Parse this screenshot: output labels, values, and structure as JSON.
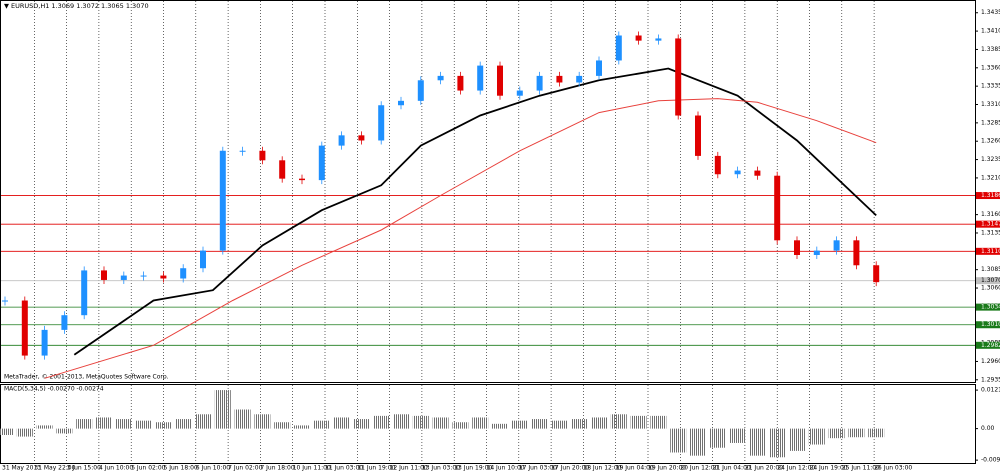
{
  "chart_data": [
    {
      "type": "candlestick",
      "title": "EURUSD,H1 1.3069 1.3072 1.3065 1.3070",
      "annotation": "MetaTrader, © 2001-2013, MetaQuotes Software Corp.",
      "up_color": "#1e90ff",
      "down_color": "#e00000",
      "values": [
        1.3043,
        1.2968,
        1.3003,
        1.3023,
        1.3084,
        1.3071,
        1.3077,
        1.3077,
        1.3073,
        1.3087,
        1.3111,
        1.3247,
        1.3247,
        1.3234,
        1.3209,
        1.3207,
        1.3254,
        1.3268,
        1.3261,
        1.3309,
        1.3315,
        1.3343,
        1.3349,
        1.3329,
        1.3363,
        1.3322,
        1.3329,
        1.3349,
        1.334,
        1.3349,
        1.337,
        1.3404,
        1.3397,
        1.34,
        1.3295,
        1.324,
        1.3215,
        1.322,
        1.3213,
        1.3125,
        1.3105,
        1.3111,
        1.3125,
        1.3091,
        1.3068
      ],
      "ma": [
        {
          "color": "#000000",
          "x": [
            3.5,
            7.5,
            10.5,
            13,
            16,
            19,
            21,
            24,
            27,
            30,
            33.5,
            37,
            40,
            44
          ],
          "values": [
            1.2969,
            1.3043,
            1.3057,
            1.3118,
            1.3166,
            1.32,
            1.3254,
            1.3295,
            1.3322,
            1.3343,
            1.3359,
            1.3322,
            1.3261,
            1.3159
          ]
        },
        {
          "color": "#e8413c",
          "x": [
            2,
            7.5,
            11.5,
            15,
            19,
            22,
            26,
            30,
            33,
            36,
            38,
            41,
            44
          ],
          "values": [
            1.2937,
            1.2982,
            1.3043,
            1.3091,
            1.3139,
            1.3186,
            1.3247,
            1.3299,
            1.3315,
            1.3318,
            1.3313,
            1.3288,
            1.3258
          ]
        }
      ],
      "levels": [
        {
          "value": 1.3186,
          "color": "#e00000"
        },
        {
          "value": 1.3147,
          "color": "#e00000"
        },
        {
          "value": 1.311,
          "label": "1.3110",
          "color": "#e00000"
        },
        {
          "value": 1.3034,
          "color": "#1a7a1a"
        },
        {
          "value": 1.301,
          "label": "1.3010",
          "color": "#1a7a1a"
        },
        {
          "value": 1.2982,
          "color": "#1a7a1a"
        },
        {
          "value": 1.307,
          "label": "1.3070",
          "color": "#c0c0c0"
        }
      ],
      "ylim": [
        1.2932,
        1.3451
      ],
      "yticks": [
        1.2935,
        {
          "value": 1.296,
          "label": "1.2960"
        },
        1.2985,
        {
          "value": 1.301,
          "label": "1.3010"
        },
        1.3035,
        {
          "value": 1.306,
          "label": "1.3060"
        },
        1.3085,
        {
          "value": 1.311,
          "label": "1.3110"
        },
        1.3135,
        {
          "value": 1.316,
          "label": "1.3160"
        },
        1.3185,
        {
          "value": 1.321,
          "label": "1.3210"
        },
        1.3235,
        {
          "value": 1.326,
          "label": "1.3260"
        },
        1.3285,
        {
          "value": 1.331,
          "label": "1.3310"
        },
        1.3335,
        {
          "value": 1.336,
          "label": "1.3360"
        },
        1.3385,
        {
          "value": 1.341,
          "label": "1.3410"
        },
        1.3435
      ],
      "time_labels": [
        "31 May 2013",
        "31 May 22:00",
        "3 Jun 15:00",
        "4 Jun 10:00",
        "5 Jun 02:00",
        "5 Jun 18:00",
        "6 Jun 10:00",
        "7 Jun 02:00",
        "7 Jun 18:00",
        "10 Jun 11:00",
        "11 Jun 03:00",
        "11 Jun 19:00",
        "12 Jun 11:00",
        "13 Jun 03:00",
        "13 Jun 19:00",
        "14 Jun 10:00",
        "17 Jun 03:00",
        "17 Jun 20:00",
        "18 Jun 12:00",
        "19 Jun 04:00",
        "19 Jun 20:00",
        "20 Jun 12:00",
        "21 Jun 04:00",
        "21 Jun 20:00",
        "24 Jun 12:00",
        "24 Jun 19:00",
        "25 Jun 11:00",
        "26 Jun 03:00"
      ],
      "grid": true
    },
    {
      "type": "bar",
      "title": "MACD(5,34,5) -0.00270 -0.00274",
      "color": "#808080",
      "values": [
        -0.002,
        -0.0025,
        0.001,
        -0.0015,
        0.003,
        0.0035,
        0.003,
        0.0025,
        0.002,
        0.003,
        0.0045,
        0.0121,
        0.006,
        0.0045,
        0.002,
        0.001,
        0.0025,
        0.0035,
        0.003,
        0.004,
        0.0045,
        0.004,
        0.0035,
        0.002,
        0.0035,
        0.0015,
        0.0025,
        0.003,
        0.0025,
        0.003,
        0.0035,
        0.0045,
        0.004,
        0.004,
        -0.0075,
        -0.0085,
        -0.006,
        -0.0045,
        -0.0085,
        -0.009,
        -0.007,
        -0.005,
        -0.003,
        -0.0027,
        -0.0027
      ],
      "ylim": [
        -0.0108,
        0.0137
      ],
      "yticks": [
        0.0121,
        {
          "value": 0,
          "label": "0.00"
        },
        -0.0099
      ]
    }
  ]
}
